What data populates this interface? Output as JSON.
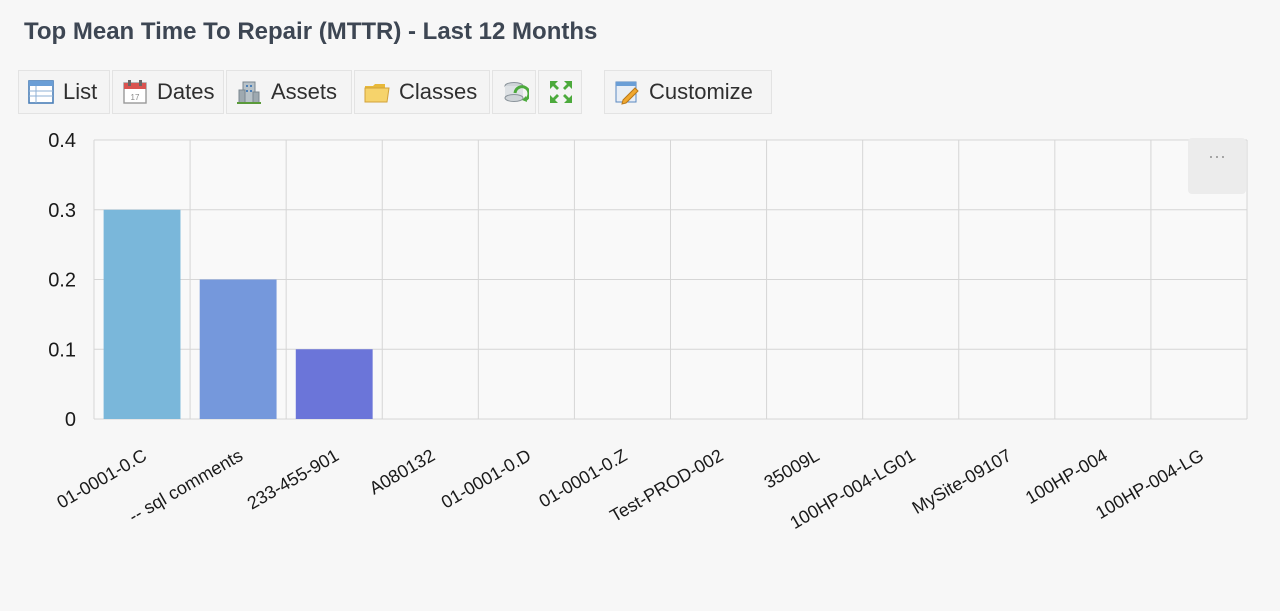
{
  "title": "Top Mean Time To Repair (MTTR) - Last 12 Months",
  "toolbar": {
    "list_label": "List",
    "dates_label": "Dates",
    "assets_label": "Assets",
    "classes_label": "Classes",
    "customize_label": "Customize",
    "icons": [
      "list-icon",
      "calendar-icon",
      "building-icon",
      "folder-icon",
      "refresh-icon",
      "expand-icon",
      "customize-icon"
    ]
  },
  "chart_menu_label": "···",
  "chart_data": {
    "type": "bar",
    "categories": [
      "01-0001-0.C",
      "-- sql comments",
      "233-455-901",
      "A080132",
      "01-0001-0.D",
      "01-0001-0.Z",
      "Test-PROD-002",
      "35009L",
      "100HP-004-LG01",
      "MySite-09107",
      "100HP-004",
      "100HP-004-LG"
    ],
    "values": [
      0.3,
      0.2,
      0.1,
      0,
      0,
      0,
      0,
      0,
      0,
      0,
      0,
      0
    ],
    "colors": [
      "#7ab7da",
      "#7598dc",
      "#6b75d9"
    ],
    "ylim": [
      0,
      0.4
    ],
    "yticks": [
      "0",
      "0.1",
      "0.2",
      "0.3",
      "0.4"
    ],
    "grid": true,
    "xlabel": "",
    "ylabel": ""
  }
}
